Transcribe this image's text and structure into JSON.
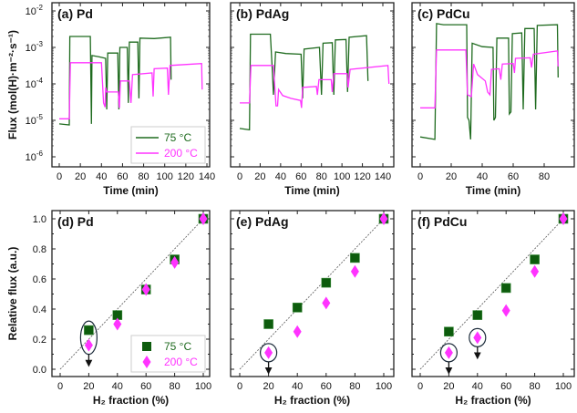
{
  "colors": {
    "series_75": "#1f6b1f",
    "series_200": "#ff33ff",
    "marker_75": "#0d5c0d",
    "guide": "#555555",
    "annotation": "#1b2a3a"
  },
  "chart_data": [
    {
      "type": "line",
      "title": "(a) Pd",
      "xlabel": "Time (min)",
      "ylabel": "Flux (mol(H)·m⁻²·s⁻¹)",
      "yscale": "log",
      "ylim": [
        1e-06,
        0.01
      ],
      "xlim": [
        0,
        140
      ],
      "xticks": [
        0,
        20,
        40,
        60,
        80,
        100,
        120,
        140
      ],
      "yticks": [
        {
          "v": 0.01,
          "label": "10",
          "exp": "-2"
        },
        {
          "v": 0.001,
          "label": "10",
          "exp": "-3"
        },
        {
          "v": 0.0001,
          "label": "10",
          "exp": "-4"
        },
        {
          "v": 1e-05,
          "label": "10",
          "exp": "-5"
        },
        {
          "v": 1e-06,
          "label": "10",
          "exp": "-6"
        }
      ],
      "legend": {
        "position": "bottom-right",
        "entries": [
          "75 °C",
          "200 °C"
        ]
      },
      "series": [
        {
          "name": "75 °C",
          "points": [
            [
              0,
              8e-06
            ],
            [
              9.5,
              7.5e-06
            ],
            [
              10,
              0.002
            ],
            [
              29.5,
              0.002
            ],
            [
              30.5,
              8e-06
            ],
            [
              31,
              0.0006
            ],
            [
              38,
              0.00055
            ],
            [
              44,
              0.0005
            ],
            [
              45,
              2e-05
            ],
            [
              46,
              0.0007
            ],
            [
              55.5,
              0.0007
            ],
            [
              56.5,
              2e-05
            ],
            [
              57.5,
              0.001
            ],
            [
              64.5,
              0.001
            ],
            [
              65.5,
              3e-05
            ],
            [
              66.5,
              0.0014
            ],
            [
              74.5,
              0.0014
            ],
            [
              75.5,
              4e-05
            ],
            [
              76.5,
              0.0018
            ],
            [
              90,
              0.00175
            ],
            [
              105.5,
              0.0019
            ],
            [
              106,
              0.00013
            ]
          ]
        },
        {
          "name": "200 °C",
          "points": [
            [
              0,
              1.1e-05
            ],
            [
              9.5,
              1.1e-05
            ],
            [
              10.5,
              0.00038
            ],
            [
              40,
              0.00038
            ],
            [
              42,
              3e-05
            ],
            [
              43.5,
              2.3e-05
            ],
            [
              44,
              8e-05
            ],
            [
              45,
              6e-05
            ],
            [
              56,
              6e-05
            ],
            [
              57,
              2.2e-05
            ],
            [
              58,
              0.00012
            ],
            [
              66.5,
              0.00012
            ],
            [
              68,
              3e-05
            ],
            [
              69.5,
              0.00018
            ],
            [
              88,
              0.0002
            ],
            [
              89,
              4.5e-05
            ],
            [
              90,
              0.00026
            ],
            [
              102.5,
              0.00027
            ],
            [
              103.5,
              5e-05
            ],
            [
              105,
              0.00032
            ],
            [
              135,
              0.00036
            ],
            [
              135.5,
              7e-05
            ]
          ]
        }
      ]
    },
    {
      "type": "line",
      "title": "(b) PdAg",
      "xlabel": "Time (min)",
      "yscale": "log",
      "ylim": [
        1e-06,
        0.01
      ],
      "xlim": [
        0,
        140
      ],
      "xticks": [
        0,
        20,
        40,
        60,
        80,
        100,
        120,
        140
      ],
      "series": [
        {
          "name": "75 °C",
          "points": [
            [
              0,
              6e-06
            ],
            [
              9.5,
              5.5e-06
            ],
            [
              10.5,
              0.0023
            ],
            [
              30,
              0.0023
            ],
            [
              32,
              0.0002
            ],
            [
              33,
              5e-05
            ],
            [
              35,
              0.00075
            ],
            [
              45,
              0.00068
            ],
            [
              60,
              0.00065
            ],
            [
              61.5,
              4e-05
            ],
            [
              63,
              0.0009
            ],
            [
              78,
              0.001
            ],
            [
              80,
              5e-05
            ],
            [
              81.5,
              0.0013
            ],
            [
              90.5,
              0.00135
            ],
            [
              92,
              5e-05
            ],
            [
              93.5,
              0.0016
            ],
            [
              104,
              0.00165
            ],
            [
              105.5,
              6e-05
            ],
            [
              107,
              0.0019
            ],
            [
              124,
              0.0021
            ],
            [
              125.5,
              0.00012
            ]
          ]
        },
        {
          "name": "200 °C",
          "points": [
            [
              0,
              3e-05
            ],
            [
              9.5,
              3e-05
            ],
            [
              11,
              0.00032
            ],
            [
              33,
              0.00032
            ],
            [
              35.5,
              2.5e-05
            ],
            [
              37,
              2.5e-05
            ],
            [
              38,
              7e-05
            ],
            [
              42,
              4.8e-05
            ],
            [
              50,
              4e-05
            ],
            [
              59.5,
              3.5e-05
            ],
            [
              60.5,
              2.2e-05
            ],
            [
              61.5,
              8e-05
            ],
            [
              75,
              8.5e-05
            ],
            [
              76,
              5e-05
            ],
            [
              77.5,
              0.00013
            ],
            [
              89.5,
              0.00013
            ],
            [
              90.5,
              6e-05
            ],
            [
              92,
              0.00019
            ],
            [
              105,
              0.00019
            ],
            [
              106,
              8e-05
            ],
            [
              108,
              0.00025
            ],
            [
              145,
              0.00032
            ],
            [
              146,
              0.0001
            ]
          ]
        }
      ]
    },
    {
      "type": "line",
      "title": "(c) PdCu",
      "xlabel": "Time (min)",
      "yscale": "log",
      "ylim": [
        1e-06,
        0.01
      ],
      "xlim": [
        0,
        90
      ],
      "xticks": [
        0,
        20,
        40,
        60,
        80
      ],
      "series": [
        {
          "name": "75 °C",
          "points": [
            [
              0,
              3.5e-06
            ],
            [
              9.5,
              3e-06
            ],
            [
              10.5,
              0.0045
            ],
            [
              15,
              0.0042
            ],
            [
              30,
              0.0042
            ],
            [
              30.5,
              1.2e-05
            ],
            [
              31.5,
              1e-05
            ],
            [
              32.5,
              3e-06
            ],
            [
              33.5,
              0.0013
            ],
            [
              40,
              0.00105
            ],
            [
              47,
              0.001
            ],
            [
              47.5,
              1e-05
            ],
            [
              48.5,
              1.2e-05
            ],
            [
              49.5,
              0.0018
            ],
            [
              57,
              0.0018
            ],
            [
              57.5,
              1.5e-05
            ],
            [
              58.5,
              1.7e-05
            ],
            [
              59.5,
              0.0024
            ],
            [
              65.5,
              0.0025
            ],
            [
              66.5,
              2e-05
            ],
            [
              67.5,
              0.0033
            ],
            [
              73.5,
              0.0033
            ],
            [
              74.5,
              2e-05
            ],
            [
              75.5,
              0.004
            ],
            [
              88.5,
              0.0042
            ],
            [
              89,
              0.00015
            ]
          ]
        },
        {
          "name": "200 °C",
          "points": [
            [
              0,
              2.2e-05
            ],
            [
              9.5,
              2.2e-05
            ],
            [
              10.5,
              0.00085
            ],
            [
              29.5,
              0.00085
            ],
            [
              30.5,
              5e-05
            ],
            [
              33,
              4.5e-05
            ],
            [
              34.5,
              0.00035
            ],
            [
              37,
              0.00018
            ],
            [
              42,
              0.00012
            ],
            [
              43.5,
              6e-05
            ],
            [
              45,
              5e-05
            ],
            [
              46,
              0.00025
            ],
            [
              51,
              0.00026
            ],
            [
              52,
              0.00013
            ],
            [
              53,
              0.00035
            ],
            [
              60,
              0.00036
            ],
            [
              60.8,
              0.0002
            ],
            [
              61.5,
              0.0005
            ],
            [
              71,
              0.00052
            ],
            [
              71.8,
              0.00028
            ],
            [
              73,
              0.00065
            ],
            [
              88.5,
              0.0008
            ],
            [
              89,
              0.0003
            ]
          ]
        }
      ]
    },
    {
      "type": "scatter",
      "title": "(d) Pd",
      "xlabel": "H₂ fraction (%)",
      "ylabel": "Relative flux (a.u.)",
      "xlim": [
        0,
        100
      ],
      "ylim": [
        0,
        1.0
      ],
      "xticks": [
        0,
        20,
        40,
        60,
        80,
        100
      ],
      "yticks": [
        "0.0",
        "0.2",
        "0.4",
        "0.6",
        "0.8",
        "1.0"
      ],
      "legend": {
        "position": "bottom-right",
        "entries": [
          "75 °C",
          "200 °C"
        ]
      },
      "reference_line": [
        [
          0,
          0
        ],
        [
          100,
          1
        ]
      ],
      "series": [
        {
          "name": "75 °C",
          "marker": "square",
          "x": [
            20,
            40,
            60,
            80,
            100
          ],
          "y": [
            0.26,
            0.36,
            0.53,
            0.73,
            1.0
          ]
        },
        {
          "name": "200 °C",
          "marker": "diamond",
          "x": [
            20,
            40,
            60,
            80,
            100
          ],
          "y": [
            0.16,
            0.3,
            0.53,
            0.71,
            1.0
          ]
        }
      ],
      "upper_limit_markers": [
        {
          "x": 20,
          "y": [
            0.16,
            0.26
          ]
        }
      ]
    },
    {
      "type": "scatter",
      "title": "(e) PdAg",
      "xlabel": "H₂ fraction (%)",
      "xlim": [
        0,
        100
      ],
      "ylim": [
        0,
        1.0
      ],
      "xticks": [
        0,
        20,
        40,
        60,
        80,
        100
      ],
      "reference_line": [
        [
          0,
          0
        ],
        [
          100,
          1
        ]
      ],
      "series": [
        {
          "name": "75 °C",
          "marker": "square",
          "x": [
            20,
            40,
            60,
            80,
            100
          ],
          "y": [
            0.3,
            0.41,
            0.575,
            0.74,
            1.0
          ]
        },
        {
          "name": "200 °C",
          "marker": "diamond",
          "x": [
            20,
            40,
            60,
            80,
            100
          ],
          "y": [
            0.11,
            0.25,
            0.44,
            0.65,
            1.0
          ]
        }
      ],
      "upper_limit_markers": [
        {
          "x": 20,
          "y": [
            0.11
          ]
        }
      ]
    },
    {
      "type": "scatter",
      "title": "(f) PdCu",
      "xlabel": "H₂ fraction (%)",
      "xlim": [
        0,
        100
      ],
      "ylim": [
        0,
        1.0
      ],
      "xticks": [
        0,
        20,
        40,
        60,
        80,
        100
      ],
      "reference_line": [
        [
          0,
          0
        ],
        [
          100,
          1
        ]
      ],
      "series": [
        {
          "name": "75 °C",
          "marker": "square",
          "x": [
            20,
            40,
            60,
            80,
            100
          ],
          "y": [
            0.25,
            0.36,
            0.54,
            0.73,
            1.0
          ]
        },
        {
          "name": "200 °C",
          "marker": "diamond",
          "x": [
            20,
            40,
            60,
            80,
            100
          ],
          "y": [
            0.11,
            0.21,
            0.39,
            0.65,
            1.0
          ]
        }
      ],
      "upper_limit_markers": [
        {
          "x": 20,
          "y": [
            0.11
          ]
        },
        {
          "x": 40,
          "y": [
            0.21
          ]
        }
      ]
    }
  ]
}
